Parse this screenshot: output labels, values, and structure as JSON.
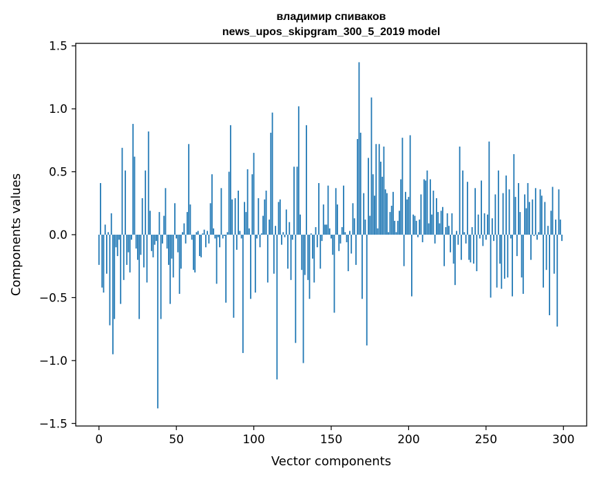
{
  "chart_data": {
    "type": "bar",
    "title": "владимир спиваков",
    "subtitle": "news_upos_skipgram_300_5_2019 model",
    "xlabel": "Vector components",
    "ylabel": "Components values",
    "xlim": [
      -15,
      315
    ],
    "ylim": [
      -1.52,
      1.52
    ],
    "xticks": [
      0,
      50,
      100,
      150,
      200,
      250,
      300
    ],
    "xtick_labels": [
      "0",
      "50",
      "100",
      "150",
      "200",
      "250",
      "300"
    ],
    "yticks": [
      -1.5,
      -1.0,
      -0.5,
      0.0,
      0.5,
      1.0,
      1.5
    ],
    "ytick_labels": [
      "−1.5",
      "−1.0",
      "−0.5",
      "0.0",
      "0.5",
      "1.0",
      "1.5"
    ],
    "bar_color": "#1f77b4",
    "grid": false,
    "x": "indices 0..299",
    "values": [
      -0.24,
      0.41,
      -0.42,
      -0.46,
      0.08,
      -0.31,
      0.02,
      -0.72,
      0.17,
      -0.95,
      -0.67,
      -0.1,
      -0.17,
      -0.04,
      -0.55,
      0.69,
      -0.36,
      0.51,
      -0.24,
      -0.14,
      -0.3,
      -0.04,
      0.88,
      0.62,
      -0.11,
      -0.2,
      -0.67,
      -0.16,
      0.29,
      -0.26,
      0.51,
      -0.38,
      0.82,
      0.19,
      -0.13,
      -0.18,
      -0.08,
      -0.05,
      -1.38,
      0.18,
      -0.67,
      -0.07,
      0.15,
      0.37,
      -0.11,
      -0.24,
      -0.55,
      -0.19,
      -0.34,
      0.25,
      -0.03,
      -0.14,
      -0.47,
      -0.27,
      0.02,
      0.09,
      -0.07,
      0.18,
      0.72,
      0.24,
      -0.04,
      -0.28,
      -0.3,
      0.02,
      0.03,
      -0.17,
      -0.18,
      0.01,
      0.04,
      -0.1,
      0.03,
      -0.07,
      0.25,
      0.48,
      0.05,
      -0.03,
      -0.39,
      -0.02,
      -0.1,
      0.37,
      -0.03,
      -0.01,
      -0.54,
      0.02,
      0.5,
      0.87,
      0.28,
      -0.66,
      0.29,
      -0.12,
      0.35,
      0.03,
      -0.03,
      -0.94,
      0.26,
      0.18,
      0.52,
      0.05,
      -0.51,
      0.48,
      0.65,
      -0.46,
      -0.03,
      0.29,
      -0.1,
      0.01,
      0.15,
      0.28,
      0.35,
      -0.38,
      0.12,
      0.81,
      0.97,
      -0.31,
      0.07,
      -1.15,
      0.26,
      0.28,
      -0.08,
      0.02,
      -0.02,
      0.2,
      -0.27,
      0.1,
      -0.36,
      -0.04,
      0.54,
      -0.86,
      0.54,
      1.02,
      0.16,
      -0.28,
      -1.02,
      -0.32,
      0.87,
      -0.36,
      -0.51,
      0.01,
      -0.19,
      -0.38,
      0.06,
      -0.1,
      0.41,
      -0.27,
      -0.05,
      0.24,
      0.08,
      0.08,
      0.39,
      0.05,
      -0.03,
      -0.16,
      -0.62,
      0.37,
      0.24,
      -0.13,
      -0.07,
      0.06,
      0.39,
      0.02,
      -0.06,
      -0.29,
      0.03,
      -0.15,
      0.25,
      0.13,
      -0.24,
      0.76,
      1.37,
      0.81,
      -0.51,
      0.33,
      0.12,
      -0.88,
      0.61,
      0.15,
      1.09,
      0.48,
      0.31,
      0.72,
      0.05,
      0.72,
      0.58,
      0.46,
      0.7,
      0.36,
      0.33,
      0.02,
      0.18,
      0.23,
      0.34,
      0.11,
      0.02,
      0.11,
      0.19,
      0.44,
      0.77,
      -0.25,
      0.34,
      0.28,
      0.3,
      0.79,
      -0.49,
      0.16,
      0.15,
      0.11,
      -0.02,
      0.12,
      0.32,
      -0.06,
      0.44,
      0.43,
      0.51,
      0.09,
      0.44,
      0.16,
      0.35,
      -0.07,
      0.29,
      0.18,
      0.09,
      0.19,
      0.22,
      -0.25,
      0.06,
      0.17,
      0.07,
      -0.14,
      0.17,
      -0.23,
      -0.4,
      0.03,
      -0.08,
      0.7,
      -0.2,
      0.51,
      0.02,
      -0.07,
      0.42,
      -0.2,
      -0.22,
      0.06,
      -0.23,
      0.37,
      -0.29,
      0.16,
      -0.03,
      0.43,
      -0.09,
      0.17,
      -0.04,
      0.16,
      0.74,
      -0.5,
      0.13,
      -0.05,
      0.32,
      -0.42,
      0.51,
      -0.23,
      -0.43,
      0.33,
      -0.35,
      0.47,
      -0.34,
      0.36,
      -0.03,
      -0.49,
      0.64,
      0.3,
      -0.17,
      0.41,
      0.18,
      -0.34,
      -0.47,
      0.32,
      0.21,
      0.41,
      0.26,
      -0.2,
      0.28,
      -0.01,
      0.37,
      -0.04,
      0.02,
      0.36,
      0.31,
      -0.42,
      0.26,
      -0.28,
      0.07,
      -0.64,
      0.19,
      0.38,
      -0.31,
      0.12,
      -0.73,
      0.36,
      0.12,
      -0.05
    ]
  }
}
